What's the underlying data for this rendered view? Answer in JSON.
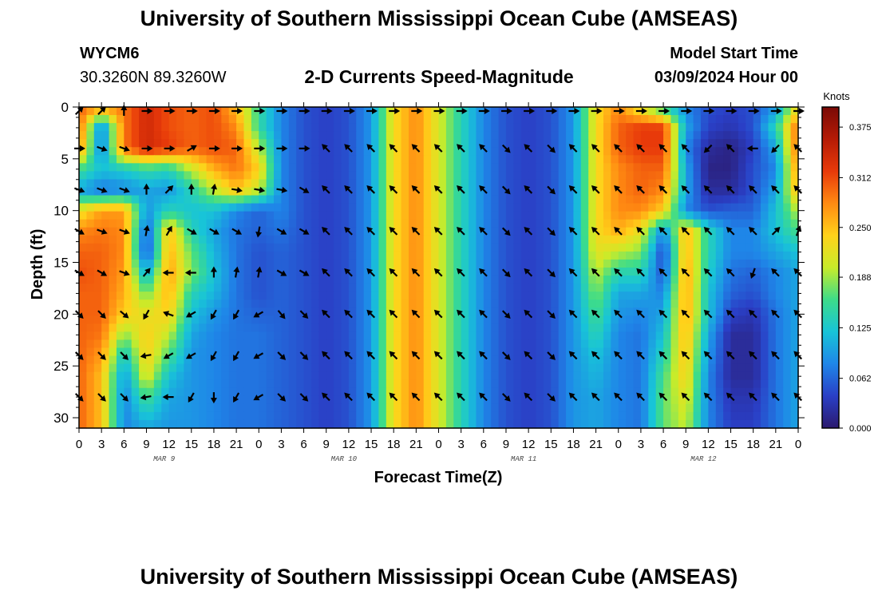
{
  "header": {
    "title": "University of Southern Mississippi Ocean Cube (AMSEAS)",
    "station_id": "WYCM6",
    "coords": "30.3260N  89.3260W",
    "chart_title": "2-D Currents Speed-Magnitude",
    "start_label": "Model Start Time",
    "start_value": "03/09/2024 Hour 00"
  },
  "footer": {
    "title": "University of Southern Mississippi Ocean Cube (AMSEAS)"
  },
  "colors": {
    "colormap": [
      "#2b1a6e",
      "#2a3fc6",
      "#1f86e8",
      "#18c4d8",
      "#3ddc8a",
      "#c8ec2a",
      "#ffd21a",
      "#ff8a12",
      "#e83a0a",
      "#b51b06",
      "#7a0a06"
    ],
    "arrow": "#000000",
    "background": "#ffffff"
  },
  "chart_data": {
    "type": "heatmap",
    "title": "2-D Currents Speed-Magnitude",
    "xlabel": "Forecast Time(Z)",
    "ylabel": "Depth (ft)",
    "x_range_hours": [
      0,
      96
    ],
    "y_range_ft": [
      0,
      31
    ],
    "x_tick_labels": [
      "0",
      "3",
      "6",
      "9",
      "12",
      "15",
      "18",
      "21",
      "0",
      "3",
      "6",
      "9",
      "12",
      "15",
      "18",
      "21",
      "0",
      "3",
      "6",
      "9",
      "12",
      "15",
      "18",
      "21",
      "0",
      "3",
      "6",
      "9",
      "12",
      "15",
      "18",
      "21",
      "0"
    ],
    "y_ticks": [
      0,
      5,
      10,
      15,
      20,
      25,
      30
    ],
    "date_labels": [
      {
        "label": "MAR 9",
        "hour": 12
      },
      {
        "label": "MAR 10",
        "hour": 36
      },
      {
        "label": "MAR 11",
        "hour": 60
      },
      {
        "label": "MAR 12",
        "hour": 84
      }
    ],
    "colorbar": {
      "label": "Knots",
      "ticks": [
        "0.000",
        "0.062",
        "0.125",
        "0.188",
        "0.250",
        "0.312",
        "0.375"
      ],
      "range": [
        0,
        0.4
      ]
    },
    "depths_ft": [
      0,
      2,
      4,
      6,
      8,
      10,
      12,
      14,
      16,
      18,
      20,
      22,
      24,
      26,
      28,
      31
    ],
    "hours": [
      0,
      3,
      6,
      9,
      12,
      15,
      18,
      21,
      24,
      27,
      30,
      33,
      36,
      39,
      42,
      45,
      48,
      51,
      54,
      57,
      60,
      63,
      66,
      69,
      72,
      75,
      78,
      81,
      84,
      87,
      90,
      93,
      96
    ],
    "speed_knots": [
      [
        0.3,
        0.28,
        0.29,
        0.34,
        0.31,
        0.3,
        0.31,
        0.25,
        0.15,
        0.08,
        0.05,
        0.04,
        0.05,
        0.09,
        0.23,
        0.28,
        0.21,
        0.14,
        0.08,
        0.05,
        0.04,
        0.05,
        0.09,
        0.23,
        0.28,
        0.21,
        0.14,
        0.08,
        0.05,
        0.04,
        0.05,
        0.09,
        0.23
      ],
      [
        0.3,
        0.07,
        0.29,
        0.34,
        0.31,
        0.3,
        0.31,
        0.28,
        0.15,
        0.08,
        0.05,
        0.04,
        0.05,
        0.09,
        0.23,
        0.28,
        0.21,
        0.14,
        0.08,
        0.05,
        0.04,
        0.05,
        0.09,
        0.23,
        0.3,
        0.32,
        0.32,
        0.1,
        0.04,
        0.03,
        0.05,
        0.14,
        0.3
      ],
      [
        0.28,
        0.07,
        0.29,
        0.34,
        0.32,
        0.3,
        0.31,
        0.3,
        0.2,
        0.08,
        0.05,
        0.04,
        0.05,
        0.09,
        0.23,
        0.28,
        0.21,
        0.14,
        0.08,
        0.05,
        0.04,
        0.05,
        0.09,
        0.23,
        0.3,
        0.32,
        0.32,
        0.08,
        0.02,
        0.01,
        0.04,
        0.1,
        0.3
      ],
      [
        0.16,
        0.12,
        0.13,
        0.15,
        0.14,
        0.2,
        0.26,
        0.29,
        0.24,
        0.08,
        0.05,
        0.04,
        0.05,
        0.09,
        0.23,
        0.28,
        0.21,
        0.14,
        0.08,
        0.05,
        0.04,
        0.05,
        0.09,
        0.23,
        0.28,
        0.3,
        0.3,
        0.1,
        0.01,
        0.01,
        0.05,
        0.08,
        0.28
      ],
      [
        0.1,
        0.07,
        0.08,
        0.1,
        0.09,
        0.14,
        0.2,
        0.25,
        0.2,
        0.08,
        0.05,
        0.04,
        0.05,
        0.09,
        0.23,
        0.28,
        0.21,
        0.14,
        0.08,
        0.05,
        0.04,
        0.05,
        0.09,
        0.23,
        0.28,
        0.3,
        0.28,
        0.1,
        0.02,
        0.02,
        0.05,
        0.1,
        0.26
      ],
      [
        0.22,
        0.27,
        0.27,
        0.09,
        0.14,
        0.12,
        0.12,
        0.08,
        0.06,
        0.08,
        0.05,
        0.04,
        0.05,
        0.09,
        0.23,
        0.28,
        0.21,
        0.14,
        0.08,
        0.05,
        0.04,
        0.05,
        0.09,
        0.23,
        0.28,
        0.28,
        0.24,
        0.08,
        0.05,
        0.06,
        0.06,
        0.12,
        0.2
      ],
      [
        0.28,
        0.29,
        0.28,
        0.05,
        0.25,
        0.14,
        0.1,
        0.07,
        0.06,
        0.07,
        0.05,
        0.04,
        0.05,
        0.09,
        0.23,
        0.28,
        0.21,
        0.14,
        0.08,
        0.05,
        0.04,
        0.05,
        0.09,
        0.23,
        0.26,
        0.22,
        0.08,
        0.26,
        0.14,
        0.08,
        0.08,
        0.12,
        0.16
      ],
      [
        0.3,
        0.3,
        0.28,
        0.04,
        0.26,
        0.17,
        0.11,
        0.07,
        0.05,
        0.06,
        0.05,
        0.04,
        0.05,
        0.09,
        0.23,
        0.28,
        0.21,
        0.14,
        0.08,
        0.05,
        0.04,
        0.05,
        0.09,
        0.22,
        0.2,
        0.18,
        0.04,
        0.26,
        0.14,
        0.08,
        0.08,
        0.1,
        0.12
      ],
      [
        0.31,
        0.3,
        0.27,
        0.1,
        0.27,
        0.18,
        0.12,
        0.07,
        0.05,
        0.06,
        0.05,
        0.04,
        0.05,
        0.09,
        0.23,
        0.28,
        0.21,
        0.14,
        0.08,
        0.05,
        0.04,
        0.05,
        0.09,
        0.2,
        0.14,
        0.14,
        0.05,
        0.27,
        0.13,
        0.07,
        0.06,
        0.08,
        0.1
      ],
      [
        0.3,
        0.3,
        0.26,
        0.17,
        0.26,
        0.14,
        0.11,
        0.07,
        0.05,
        0.06,
        0.05,
        0.04,
        0.05,
        0.09,
        0.23,
        0.28,
        0.21,
        0.14,
        0.08,
        0.05,
        0.04,
        0.05,
        0.09,
        0.18,
        0.1,
        0.1,
        0.08,
        0.27,
        0.12,
        0.06,
        0.05,
        0.08,
        0.1
      ],
      [
        0.3,
        0.3,
        0.24,
        0.22,
        0.24,
        0.12,
        0.09,
        0.07,
        0.06,
        0.06,
        0.05,
        0.04,
        0.05,
        0.09,
        0.23,
        0.28,
        0.21,
        0.14,
        0.08,
        0.05,
        0.04,
        0.05,
        0.09,
        0.16,
        0.09,
        0.08,
        0.1,
        0.27,
        0.12,
        0.04,
        0.03,
        0.07,
        0.1
      ],
      [
        0.3,
        0.29,
        0.18,
        0.24,
        0.2,
        0.1,
        0.08,
        0.07,
        0.07,
        0.06,
        0.05,
        0.04,
        0.05,
        0.09,
        0.23,
        0.28,
        0.21,
        0.14,
        0.08,
        0.05,
        0.04,
        0.05,
        0.09,
        0.14,
        0.08,
        0.07,
        0.12,
        0.26,
        0.1,
        0.02,
        0.02,
        0.07,
        0.1
      ],
      [
        0.3,
        0.27,
        0.12,
        0.24,
        0.16,
        0.09,
        0.08,
        0.07,
        0.07,
        0.06,
        0.05,
        0.04,
        0.05,
        0.09,
        0.23,
        0.28,
        0.21,
        0.14,
        0.08,
        0.05,
        0.04,
        0.05,
        0.09,
        0.12,
        0.08,
        0.07,
        0.14,
        0.25,
        0.09,
        0.02,
        0.02,
        0.07,
        0.1
      ],
      [
        0.3,
        0.25,
        0.09,
        0.22,
        0.12,
        0.09,
        0.08,
        0.07,
        0.07,
        0.06,
        0.05,
        0.04,
        0.05,
        0.09,
        0.23,
        0.28,
        0.21,
        0.14,
        0.08,
        0.05,
        0.04,
        0.05,
        0.09,
        0.11,
        0.08,
        0.07,
        0.16,
        0.24,
        0.08,
        0.02,
        0.02,
        0.07,
        0.1
      ],
      [
        0.3,
        0.25,
        0.08,
        0.16,
        0.1,
        0.09,
        0.08,
        0.07,
        0.07,
        0.06,
        0.05,
        0.04,
        0.05,
        0.09,
        0.23,
        0.28,
        0.21,
        0.14,
        0.08,
        0.05,
        0.04,
        0.05,
        0.09,
        0.1,
        0.08,
        0.07,
        0.17,
        0.22,
        0.08,
        0.03,
        0.03,
        0.07,
        0.1
      ],
      [
        0.3,
        0.25,
        0.08,
        0.1,
        0.09,
        0.09,
        0.08,
        0.07,
        0.07,
        0.06,
        0.05,
        0.04,
        0.05,
        0.09,
        0.23,
        0.28,
        0.21,
        0.14,
        0.08,
        0.05,
        0.04,
        0.05,
        0.09,
        0.1,
        0.08,
        0.07,
        0.17,
        0.2,
        0.08,
        0.04,
        0.04,
        0.07,
        0.1
      ]
    ],
    "arrows": {
      "depths_ft": [
        0,
        4,
        8,
        12,
        16,
        20,
        24,
        28
      ],
      "hours": [
        0,
        3,
        6,
        9,
        12,
        15,
        18,
        21,
        24,
        27,
        30,
        33,
        36,
        39,
        42,
        45,
        48,
        51,
        54,
        57,
        60,
        63,
        66,
        69,
        72,
        75,
        78,
        81,
        84,
        87,
        90,
        93,
        96
      ],
      "direction_deg": [
        [
          135,
          135,
          90,
          180,
          180,
          180,
          180,
          180,
          180,
          180,
          180,
          180,
          180,
          180,
          180,
          180,
          180,
          180,
          180,
          180,
          180,
          180,
          180,
          180,
          180,
          180,
          180,
          180,
          180,
          180,
          180,
          180,
          180
        ],
        [
          180,
          200,
          200,
          180,
          180,
          150,
          180,
          180,
          180,
          180,
          180,
          45,
          45,
          45,
          45,
          45,
          45,
          45,
          45,
          225,
          45,
          225,
          45,
          45,
          45,
          45,
          45,
          45,
          315,
          45,
          0,
          315,
          45
        ],
        [
          200,
          200,
          200,
          90,
          135,
          90,
          100,
          190,
          190,
          190,
          210,
          45,
          45,
          45,
          45,
          45,
          45,
          45,
          45,
          225,
          45,
          225,
          45,
          45,
          45,
          45,
          45,
          45,
          45,
          45,
          45,
          45,
          45
        ],
        [
          210,
          200,
          200,
          100,
          120,
          210,
          210,
          210,
          280,
          210,
          210,
          45,
          45,
          45,
          45,
          45,
          45,
          45,
          45,
          225,
          45,
          225,
          45,
          45,
          45,
          45,
          45,
          45,
          45,
          45,
          45,
          135,
          110
        ],
        [
          210,
          210,
          200,
          130,
          0,
          0,
          90,
          100,
          100,
          210,
          210,
          45,
          45,
          45,
          45,
          45,
          45,
          45,
          45,
          225,
          45,
          225,
          45,
          45,
          45,
          45,
          45,
          45,
          45,
          45,
          290,
          45,
          45
        ],
        [
          225,
          225,
          220,
          300,
          20,
          330,
          300,
          300,
          330,
          230,
          225,
          45,
          45,
          45,
          45,
          45,
          45,
          45,
          45,
          225,
          45,
          225,
          45,
          45,
          45,
          45,
          45,
          45,
          45,
          45,
          45,
          45,
          45
        ],
        [
          225,
          225,
          225,
          350,
          330,
          330,
          300,
          300,
          330,
          225,
          225,
          45,
          45,
          45,
          45,
          45,
          45,
          45,
          45,
          225,
          45,
          225,
          45,
          45,
          45,
          45,
          45,
          45,
          45,
          45,
          45,
          45,
          45
        ],
        [
          225,
          225,
          225,
          350,
          0,
          300,
          270,
          300,
          330,
          225,
          225,
          45,
          45,
          45,
          45,
          45,
          45,
          45,
          45,
          225,
          45,
          225,
          45,
          45,
          45,
          45,
          45,
          45,
          45,
          45,
          45,
          45,
          45
        ]
      ]
    }
  }
}
